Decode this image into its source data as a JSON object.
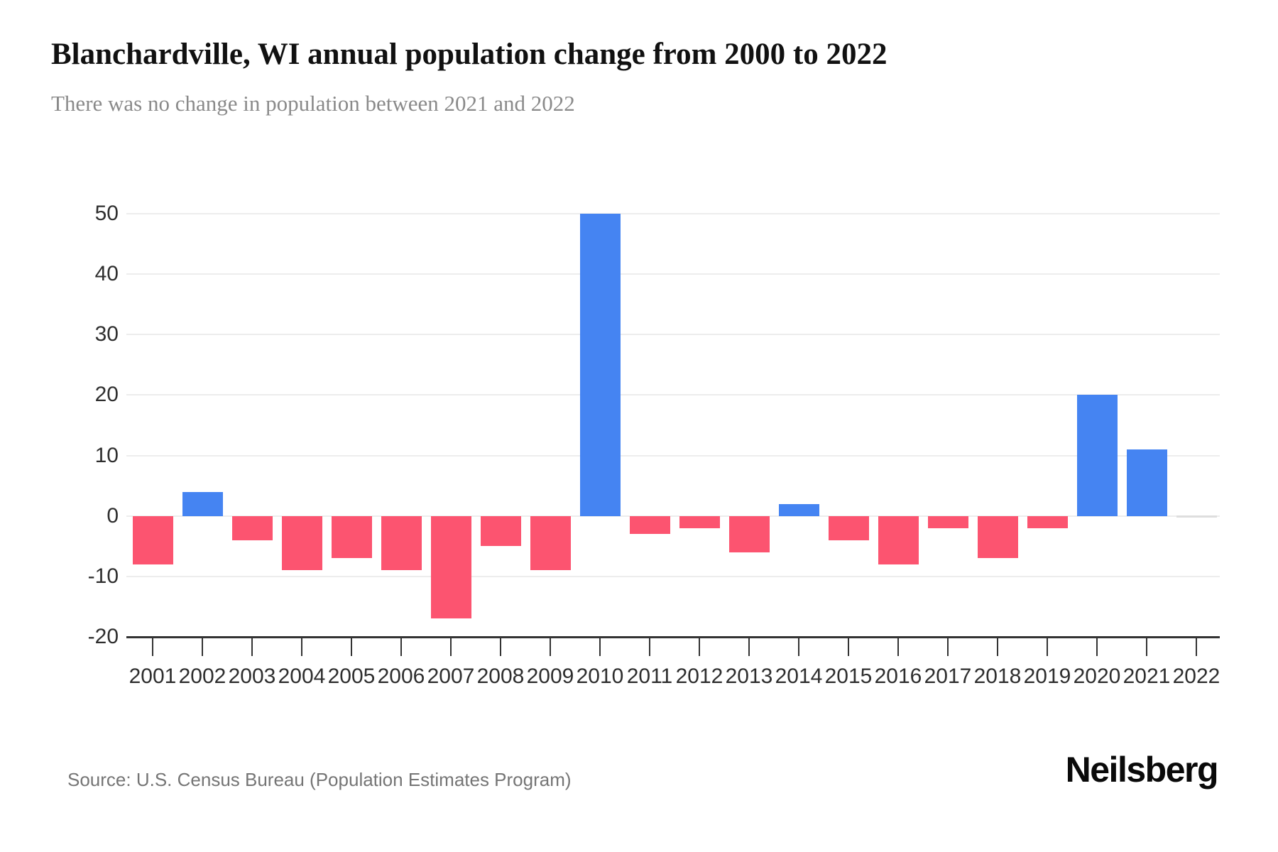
{
  "header": {
    "title": "Blanchardville, WI annual population change from 2000 to 2022",
    "subtitle": "There was no change in population between 2021 and 2022"
  },
  "footer": {
    "source": "Source: U.S. Census Bureau (Population Estimates Program)",
    "brand": "Neilsberg"
  },
  "chart_data": {
    "type": "bar",
    "title": "Blanchardville, WI annual population change from 2000 to 2022",
    "subtitle": "There was no change in population between 2021 and 2022",
    "categories": [
      "2001",
      "2002",
      "2003",
      "2004",
      "2005",
      "2006",
      "2007",
      "2008",
      "2009",
      "2010",
      "2011",
      "2012",
      "2013",
      "2014",
      "2015",
      "2016",
      "2017",
      "2018",
      "2019",
      "2020",
      "2021",
      "2022"
    ],
    "values": [
      -8,
      4,
      -4,
      -9,
      -7,
      -9,
      -17,
      -5,
      -9,
      50,
      -3,
      -2,
      -6,
      2,
      -4,
      -8,
      -2,
      -7,
      -2,
      20,
      11,
      0
    ],
    "xlabel": "",
    "ylabel": "",
    "ylim": [
      -20,
      50
    ],
    "yticks": [
      50,
      40,
      30,
      20,
      10,
      0,
      -10,
      -20
    ],
    "grid": true,
    "legend": false,
    "colors": {
      "positive": "#4584F2",
      "negative": "#FC5470",
      "zero_marker": "#dedede",
      "gridline": "#ededed",
      "axis": "#333333",
      "tick_label": "#2e2e2e"
    }
  }
}
